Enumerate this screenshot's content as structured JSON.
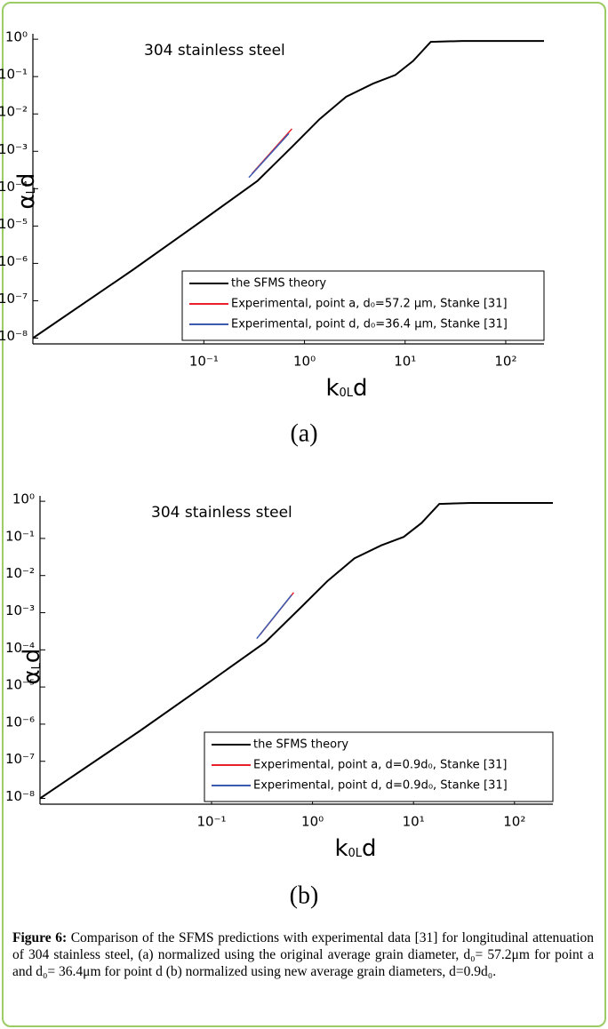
{
  "chart_data": [
    {
      "type": "line",
      "panel_label": "(a)",
      "annotation": "304 stainless steel",
      "xlabel": [
        "k",
        "0L",
        "d"
      ],
      "ylabel": [
        "α",
        "L",
        "d"
      ],
      "log_x": true,
      "log_y": true,
      "legend": "lower right",
      "xlim": [
        0.002,
        240
      ],
      "ylim": [
        7e-09,
        1.4
      ],
      "xticks": [
        {
          "value": 0.1,
          "label": "10⁻¹"
        },
        {
          "value": 1,
          "label": "10⁰"
        },
        {
          "value": 10,
          "label": "10¹"
        },
        {
          "value": 100,
          "label": "10²"
        }
      ],
      "yticks": [
        {
          "value": 1e-08,
          "label": "10⁻⁸"
        },
        {
          "value": 1e-07,
          "label": "10⁻⁷"
        },
        {
          "value": 1e-06,
          "label": "10⁻⁶"
        },
        {
          "value": 1e-05,
          "label": "10⁻⁵"
        },
        {
          "value": 0.0001,
          "label": "10⁻⁴"
        },
        {
          "value": 0.001,
          "label": "10⁻³"
        },
        {
          "value": 0.01,
          "label": "10⁻²"
        },
        {
          "value": 0.1,
          "label": "10⁻¹"
        },
        {
          "value": 1,
          "label": "10⁰"
        }
      ],
      "series": [
        {
          "name": "the SFMS theory",
          "color": "#000000",
          "x": [
            0.002,
            0.0195,
            0.1,
            0.34,
            0.77,
            1.41,
            2.6,
            4.8,
            8.0,
            12,
            18,
            37,
            240
          ],
          "values": [
            1e-08,
            6.6e-07,
            1.5e-05,
            0.00016,
            0.0014,
            0.0072,
            0.029,
            0.065,
            0.11,
            0.26,
            0.85,
            0.9,
            0.9
          ]
        },
        {
          "name": "Experimental, point a, d₀=57.2  μm, Stanke [31]",
          "color": "#e8202a",
          "x": [
            0.3,
            0.75
          ],
          "values": [
            0.00025,
            0.004
          ]
        },
        {
          "name": "Experimental, point d, d₀=36.4  μm, Stanke [31]",
          "color": "#3a5bb0",
          "x": [
            0.28,
            0.7
          ],
          "values": [
            0.0002,
            0.003
          ]
        }
      ]
    },
    {
      "type": "line",
      "panel_label": "(b)",
      "annotation": "304 stainless steel",
      "xlabel": [
        "k",
        "0L",
        "d"
      ],
      "ylabel": [
        "α",
        "L",
        "d"
      ],
      "log_x": true,
      "log_y": true,
      "legend": "lower right",
      "xlim": [
        0.002,
        240
      ],
      "ylim": [
        7e-09,
        1.4
      ],
      "xticks": [
        {
          "value": 0.1,
          "label": "10⁻¹"
        },
        {
          "value": 1,
          "label": "10⁰"
        },
        {
          "value": 10,
          "label": "10¹"
        },
        {
          "value": 100,
          "label": "10²"
        }
      ],
      "yticks": [
        {
          "value": 1e-08,
          "label": "10⁻⁸"
        },
        {
          "value": 1e-07,
          "label": "10⁻⁷"
        },
        {
          "value": 1e-06,
          "label": "10⁻⁶"
        },
        {
          "value": 1e-05,
          "label": "10⁻⁵"
        },
        {
          "value": 0.0001,
          "label": "10⁻⁴"
        },
        {
          "value": 0.001,
          "label": "10⁻³"
        },
        {
          "value": 0.01,
          "label": "10⁻²"
        },
        {
          "value": 0.1,
          "label": "10⁻¹"
        },
        {
          "value": 1,
          "label": "10⁰"
        }
      ],
      "series": [
        {
          "name": "the SFMS theory",
          "color": "#000000",
          "x": [
            0.002,
            0.0195,
            0.1,
            0.34,
            0.77,
            1.41,
            2.6,
            4.8,
            8.0,
            12,
            18,
            37,
            240
          ],
          "values": [
            1e-08,
            6.6e-07,
            1.5e-05,
            0.00016,
            0.0014,
            0.0072,
            0.029,
            0.065,
            0.11,
            0.26,
            0.85,
            0.9,
            0.9
          ]
        },
        {
          "name": "Experimental, point a, d=0.9d₀, Stanke [31]",
          "color": "#e8202a",
          "x": [
            0.3,
            0.65
          ],
          "values": [
            0.00025,
            0.0035
          ]
        },
        {
          "name": "Experimental, point d, d=0.9d₀, Stanke [31]",
          "color": "#3a5bb0",
          "x": [
            0.28,
            0.62
          ],
          "values": [
            0.0002,
            0.003
          ]
        }
      ]
    }
  ],
  "caption": {
    "label": "Figure 6:",
    "text": "Comparison of the SFMS predictions with experimental data [31] for longitudinal attenuation of 304 stainless steel, (a) normalized using the original average grain diameter, d₀= 57.2μm for point a  and d₀= 36.4μm for point d (b) normalized using new average grain diameters, d=0.9d₀."
  }
}
